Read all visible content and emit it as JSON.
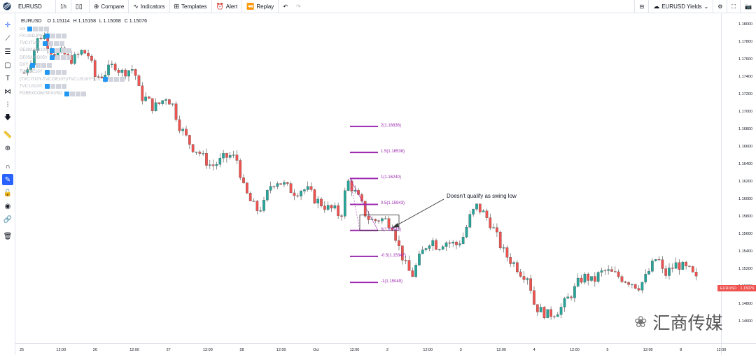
{
  "toolbar": {
    "symbol": "EURUSD",
    "interval": "1h",
    "compare": "Compare",
    "indicators": "Indicators",
    "templates": "Templates",
    "alert": "Alert",
    "replay": "Replay",
    "layout_name": "EURUSD Yields"
  },
  "legend": {
    "open": "O 1.15114",
    "high": "H 1.15158",
    "low": "L 1.15068",
    "close": "C 1.15076"
  },
  "indicators": [
    "Vol",
    "FX:USDJPY",
    "TVC:IT10Y",
    "DE30/USD10Y",
    "DE05/USD05Y",
    "DXY",
    "TVC:DE10Y",
    "(TVC:IT10Y-TVC:DE10Y)/TVC:US10Y*3.01",
    "TVC:US10Y",
    "FOREXCOM:SPXUSD"
  ],
  "price_axis": [
    "1.18000",
    "1.17800",
    "1.17600",
    "1.17400",
    "1.17200",
    "1.17000",
    "1.16800",
    "1.16600",
    "1.16400",
    "1.16200",
    "1.16000",
    "1.15800",
    "1.15600",
    "1.15400",
    "1.15200",
    "1.15000",
    "1.14800",
    "1.14600"
  ],
  "time_axis": [
    "25",
    "12:00",
    "26",
    "12:00",
    "27",
    "12:00",
    "28",
    "12:00",
    "Oct",
    "12:00",
    "2",
    "12:00",
    "3",
    "12:00",
    "4",
    "12:00",
    "5",
    "12:00",
    "8",
    "12:00"
  ],
  "last_price": "1.15076",
  "last_price_tag": "EURUSD",
  "fib_levels": [
    {
      "label": "2(1.16836)",
      "price": 1.16836
    },
    {
      "label": "1.5(1.16538)",
      "price": 1.16538
    },
    {
      "label": "1(1.16240)",
      "price": 1.1624
    },
    {
      "label": "0.5(1.15943)",
      "price": 1.15943
    },
    {
      "label": "0(1.15645)",
      "price": 1.15645
    },
    {
      "label": "-0.5(1.15347)",
      "price": 1.15347
    },
    {
      "label": "-1(1.15049)",
      "price": 1.15049
    }
  ],
  "annotation": "Doesn't qualify as swing low",
  "watermark": "汇商传媒",
  "colors": {
    "up": "#26a69a",
    "down": "#ef5350",
    "fib": "#9c27b0",
    "accent": "#2962ff"
  },
  "chart_data": {
    "type": "candlestick",
    "symbol": "EURUSD",
    "interval": "1h",
    "ylim": [
      1.1445,
      1.181
    ],
    "x": [
      "Sep 25",
      "Sep 26",
      "Sep 27",
      "Sep 28",
      "Oct 1",
      "Oct 2",
      "Oct 3",
      "Oct 4",
      "Oct 5",
      "Oct 8"
    ],
    "close_path": [
      1.1745,
      1.1758,
      1.1782,
      1.179,
      1.1772,
      1.1766,
      1.1768,
      1.176,
      1.1762,
      1.177,
      1.1765,
      1.174,
      1.1742,
      1.1748,
      1.1755,
      1.1745,
      1.1748,
      1.175,
      1.1718,
      1.1715,
      1.1705,
      1.171,
      1.1718,
      1.1708,
      1.1685,
      1.1672,
      1.166,
      1.1655,
      1.1645,
      1.1638,
      1.1642,
      1.1648,
      1.165,
      1.1645,
      1.1612,
      1.1598,
      1.1588,
      1.1592,
      1.1615,
      1.1622,
      1.1618,
      1.1612,
      1.1608,
      1.1612,
      1.161,
      1.16,
      1.1595,
      1.159,
      1.1588,
      1.158,
      1.1622,
      1.161,
      1.1598,
      1.158,
      1.1575,
      1.1578,
      1.1576,
      1.157,
      1.1545,
      1.1525,
      1.1512,
      1.153,
      1.1545,
      1.1555,
      1.1545,
      1.1552,
      1.155,
      1.1548,
      1.1558,
      1.158,
      1.1592,
      1.1585,
      1.1575,
      1.156,
      1.1542,
      1.1532,
      1.1525,
      1.1515,
      1.1512,
      1.1478,
      1.1472,
      1.1468,
      1.147,
      1.1475,
      1.1485,
      1.1495,
      1.1508,
      1.1512,
      1.1505,
      1.1515,
      1.1518,
      1.1515,
      1.1512,
      1.1508,
      1.1505,
      1.15,
      1.1508,
      1.1522,
      1.1535,
      1.1512,
      1.152,
      1.1526,
      1.1522,
      1.1518,
      1.1508
    ]
  }
}
